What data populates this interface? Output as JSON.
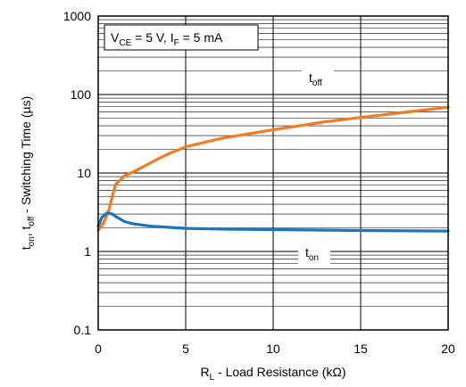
{
  "chart_data": {
    "type": "line",
    "x_scale": "linear",
    "y_scale": "log",
    "xlim": [
      0,
      20
    ],
    "ylim": [
      0.1,
      1000
    ],
    "grid": true,
    "x_ticks": [
      "0",
      "5",
      "10",
      "15",
      "20"
    ],
    "y_ticks": [
      "0.1",
      "1",
      "10",
      "100",
      "1000"
    ],
    "xlabel": {
      "main": "R",
      "sub": "L",
      "rest": " - Load Resistance (kΩ)"
    },
    "ylabel": {
      "p1": "t",
      "s1": "on",
      "p2": ", t",
      "s2": "off",
      "p3": " - Switching Time (µs)"
    },
    "annotation": {
      "p1": "V",
      "s1": "CE",
      "p2": " = 5 V, I",
      "s2": "F",
      "p3": " = 5 mA"
    },
    "series": [
      {
        "label_main": "t",
        "label_sub": "off",
        "color": "#f47b20",
        "x": [
          0,
          0.3,
          0.6,
          0.8,
          1.0,
          1.5,
          2,
          3,
          4,
          5,
          7,
          10,
          13,
          15,
          18,
          20
        ],
        "y": [
          1.85,
          2.3,
          3.3,
          5.0,
          7.2,
          9.2,
          10.3,
          13.5,
          17.5,
          21.5,
          27.5,
          35.5,
          45,
          51,
          61,
          69
        ]
      },
      {
        "label_main": "t",
        "label_sub": "on",
        "color": "#1c75bc",
        "x": [
          0,
          0.2,
          0.5,
          0.8,
          1.0,
          1.5,
          2,
          3,
          5,
          7,
          10,
          15,
          20
        ],
        "y": [
          2.1,
          2.7,
          3.1,
          3.0,
          2.8,
          2.4,
          2.25,
          2.1,
          1.97,
          1.93,
          1.9,
          1.85,
          1.82
        ]
      }
    ]
  }
}
